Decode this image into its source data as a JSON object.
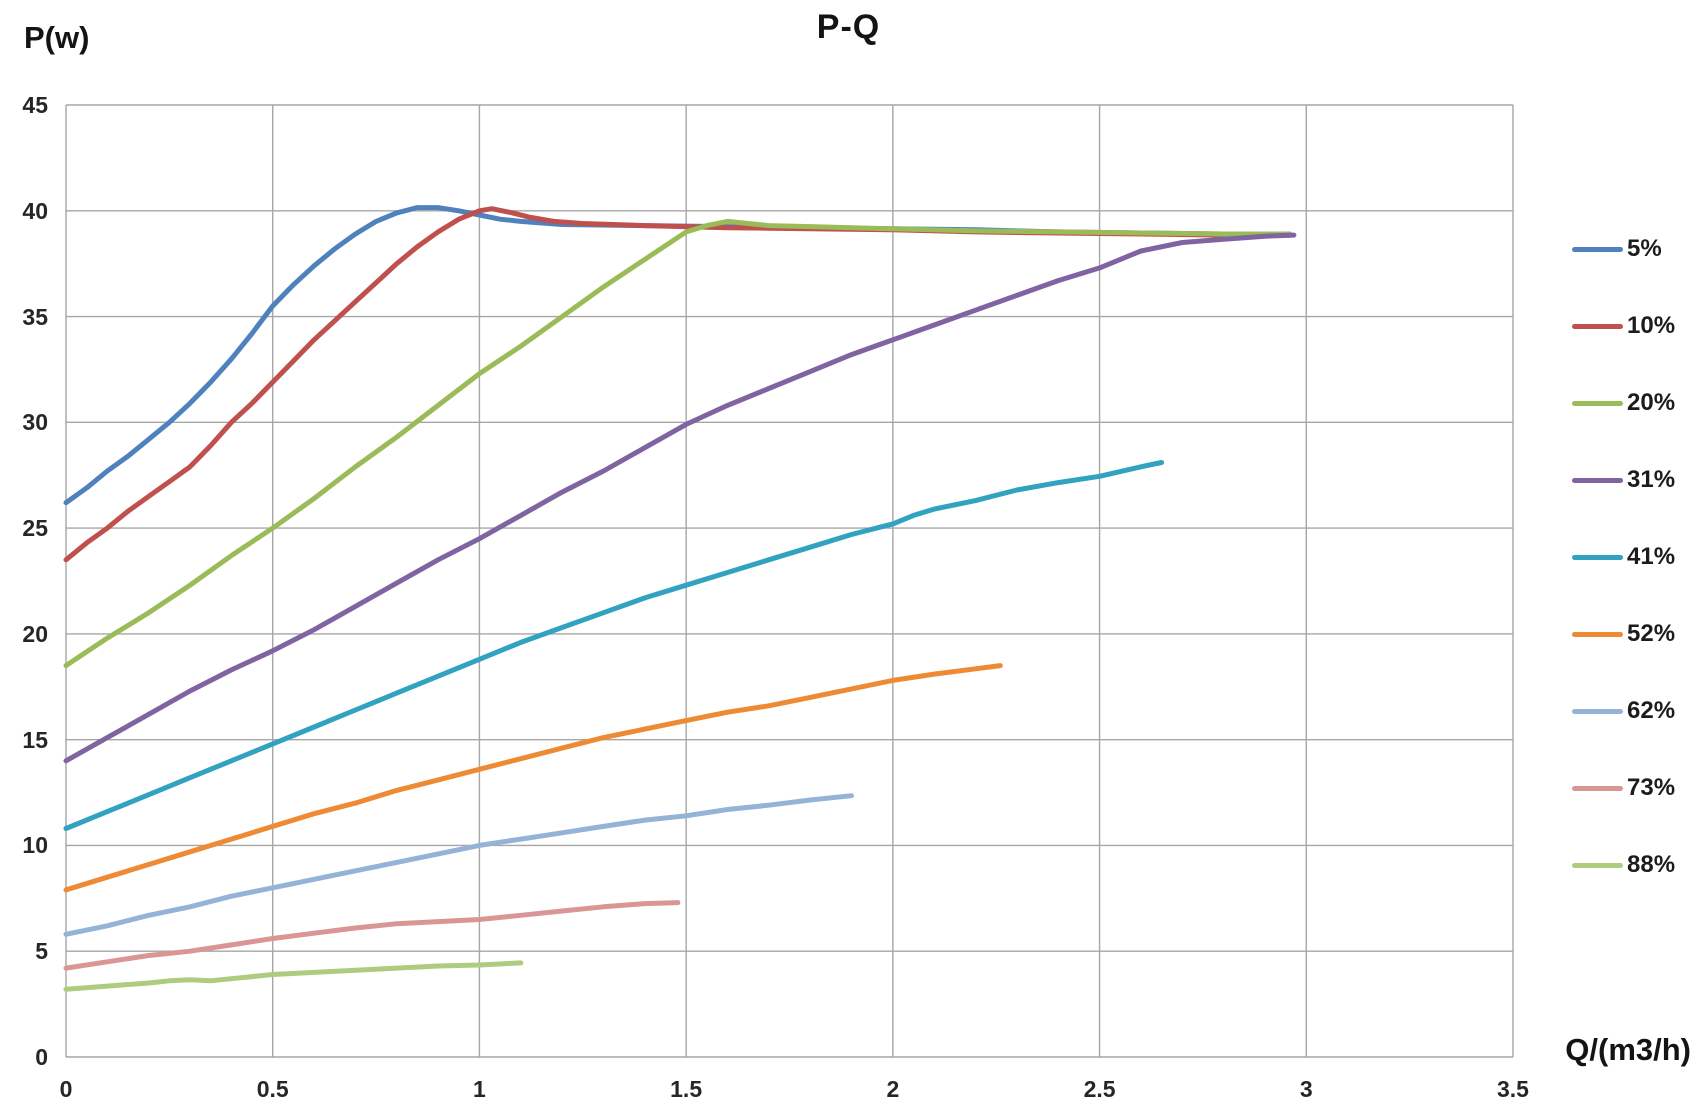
{
  "page": {
    "title": "P-Q",
    "y_axis_title": "P(w)",
    "x_axis_title": "Q/(m3/h)"
  },
  "style": {
    "grid_color": "#a6a6a6",
    "tick_text_color": "#262626",
    "title_text_color": "#141414"
  },
  "chart_data": {
    "type": "line",
    "title": "P-Q",
    "xlabel": "Q/(m3/h)",
    "ylabel": "P(w)",
    "xlim": [
      0,
      3.5
    ],
    "ylim": [
      0,
      45
    ],
    "x_tick_labels": [
      "0",
      "0.5",
      "1",
      "1.5",
      "2",
      "2.5",
      "3",
      "3.5"
    ],
    "y_tick_labels": [
      "0",
      "5",
      "10",
      "15",
      "20",
      "25",
      "30",
      "35",
      "40",
      "45"
    ],
    "grid": true,
    "legend_position": "right",
    "series": [
      {
        "name": "5%",
        "color": "#4F81BD",
        "points": [
          [
            0,
            26.2
          ],
          [
            0.05,
            26.9
          ],
          [
            0.1,
            27.7
          ],
          [
            0.15,
            28.4
          ],
          [
            0.2,
            29.2
          ],
          [
            0.25,
            30.0
          ],
          [
            0.3,
            30.9
          ],
          [
            0.35,
            31.9
          ],
          [
            0.4,
            33.0
          ],
          [
            0.45,
            34.2
          ],
          [
            0.5,
            35.5
          ],
          [
            0.55,
            36.5
          ],
          [
            0.6,
            37.4
          ],
          [
            0.65,
            38.2
          ],
          [
            0.7,
            38.9
          ],
          [
            0.75,
            39.5
          ],
          [
            0.8,
            39.9
          ],
          [
            0.85,
            40.15
          ],
          [
            0.9,
            40.15
          ],
          [
            0.95,
            40.0
          ],
          [
            1.0,
            39.8
          ],
          [
            1.05,
            39.6
          ],
          [
            1.1,
            39.5
          ],
          [
            1.2,
            39.35
          ],
          [
            1.4,
            39.3
          ],
          [
            1.6,
            39.25
          ],
          [
            1.8,
            39.2
          ],
          [
            2.0,
            39.15
          ],
          [
            2.2,
            39.1
          ],
          [
            2.4,
            39.0
          ],
          [
            2.6,
            38.95
          ],
          [
            2.8,
            38.9
          ],
          [
            2.96,
            38.9
          ]
        ]
      },
      {
        "name": "10%",
        "color": "#C0504D",
        "points": [
          [
            0,
            23.5
          ],
          [
            0.05,
            24.3
          ],
          [
            0.1,
            25.0
          ],
          [
            0.15,
            25.8
          ],
          [
            0.2,
            26.5
          ],
          [
            0.25,
            27.2
          ],
          [
            0.3,
            27.9
          ],
          [
            0.35,
            28.9
          ],
          [
            0.4,
            30.0
          ],
          [
            0.45,
            30.9
          ],
          [
            0.5,
            31.9
          ],
          [
            0.55,
            32.9
          ],
          [
            0.6,
            33.9
          ],
          [
            0.65,
            34.8
          ],
          [
            0.7,
            35.7
          ],
          [
            0.75,
            36.6
          ],
          [
            0.8,
            37.5
          ],
          [
            0.85,
            38.3
          ],
          [
            0.9,
            39.0
          ],
          [
            0.95,
            39.6
          ],
          [
            1.0,
            40.0
          ],
          [
            1.03,
            40.1
          ],
          [
            1.08,
            39.9
          ],
          [
            1.12,
            39.7
          ],
          [
            1.18,
            39.5
          ],
          [
            1.25,
            39.4
          ],
          [
            1.4,
            39.3
          ],
          [
            1.6,
            39.2
          ],
          [
            1.8,
            39.15
          ],
          [
            2.0,
            39.1
          ],
          [
            2.2,
            39.0
          ],
          [
            2.4,
            38.95
          ],
          [
            2.6,
            38.9
          ],
          [
            2.8,
            38.85
          ],
          [
            2.96,
            38.85
          ]
        ]
      },
      {
        "name": "20%",
        "color": "#9BBB59",
        "points": [
          [
            0,
            18.5
          ],
          [
            0.1,
            19.8
          ],
          [
            0.2,
            21.0
          ],
          [
            0.3,
            22.3
          ],
          [
            0.4,
            23.7
          ],
          [
            0.5,
            25.0
          ],
          [
            0.6,
            26.4
          ],
          [
            0.7,
            27.9
          ],
          [
            0.8,
            29.3
          ],
          [
            0.9,
            30.8
          ],
          [
            1.0,
            32.3
          ],
          [
            1.1,
            33.6
          ],
          [
            1.2,
            35.0
          ],
          [
            1.3,
            36.4
          ],
          [
            1.4,
            37.7
          ],
          [
            1.5,
            39.0
          ],
          [
            1.55,
            39.3
          ],
          [
            1.6,
            39.5
          ],
          [
            1.65,
            39.4
          ],
          [
            1.7,
            39.3
          ],
          [
            1.8,
            39.25
          ],
          [
            2.0,
            39.15
          ],
          [
            2.2,
            39.05
          ],
          [
            2.4,
            39.0
          ],
          [
            2.6,
            38.95
          ],
          [
            2.8,
            38.9
          ],
          [
            2.96,
            38.9
          ]
        ]
      },
      {
        "name": "31%",
        "color": "#8064A2",
        "points": [
          [
            0,
            14.0
          ],
          [
            0.1,
            15.1
          ],
          [
            0.2,
            16.2
          ],
          [
            0.3,
            17.3
          ],
          [
            0.4,
            18.3
          ],
          [
            0.5,
            19.2
          ],
          [
            0.6,
            20.2
          ],
          [
            0.7,
            21.3
          ],
          [
            0.8,
            22.4
          ],
          [
            0.9,
            23.5
          ],
          [
            1.0,
            24.5
          ],
          [
            1.1,
            25.6
          ],
          [
            1.2,
            26.7
          ],
          [
            1.3,
            27.7
          ],
          [
            1.4,
            28.8
          ],
          [
            1.5,
            29.9
          ],
          [
            1.6,
            30.8
          ],
          [
            1.7,
            31.6
          ],
          [
            1.8,
            32.4
          ],
          [
            1.9,
            33.2
          ],
          [
            2.0,
            33.9
          ],
          [
            2.1,
            34.6
          ],
          [
            2.2,
            35.3
          ],
          [
            2.3,
            36.0
          ],
          [
            2.4,
            36.7
          ],
          [
            2.5,
            37.3
          ],
          [
            2.6,
            38.1
          ],
          [
            2.7,
            38.5
          ],
          [
            2.8,
            38.65
          ],
          [
            2.9,
            38.8
          ],
          [
            2.97,
            38.85
          ]
        ]
      },
      {
        "name": "41%",
        "color": "#31A2BF",
        "points": [
          [
            0,
            10.8
          ],
          [
            0.1,
            11.6
          ],
          [
            0.2,
            12.4
          ],
          [
            0.3,
            13.2
          ],
          [
            0.4,
            14.0
          ],
          [
            0.5,
            14.8
          ],
          [
            0.6,
            15.6
          ],
          [
            0.7,
            16.4
          ],
          [
            0.8,
            17.2
          ],
          [
            0.9,
            18.0
          ],
          [
            1.0,
            18.8
          ],
          [
            1.1,
            19.6
          ],
          [
            1.2,
            20.3
          ],
          [
            1.3,
            21.0
          ],
          [
            1.4,
            21.7
          ],
          [
            1.5,
            22.3
          ],
          [
            1.6,
            22.9
          ],
          [
            1.7,
            23.5
          ],
          [
            1.8,
            24.1
          ],
          [
            1.9,
            24.7
          ],
          [
            2.0,
            25.2
          ],
          [
            2.05,
            25.6
          ],
          [
            2.1,
            25.9
          ],
          [
            2.2,
            26.3
          ],
          [
            2.3,
            26.8
          ],
          [
            2.4,
            27.15
          ],
          [
            2.5,
            27.45
          ],
          [
            2.6,
            27.9
          ],
          [
            2.65,
            28.1
          ]
        ]
      },
      {
        "name": "52%",
        "color": "#ED8A33",
        "points": [
          [
            0,
            7.9
          ],
          [
            0.1,
            8.5
          ],
          [
            0.2,
            9.1
          ],
          [
            0.3,
            9.7
          ],
          [
            0.4,
            10.3
          ],
          [
            0.5,
            10.9
          ],
          [
            0.6,
            11.5
          ],
          [
            0.7,
            12.0
          ],
          [
            0.8,
            12.6
          ],
          [
            0.9,
            13.1
          ],
          [
            1.0,
            13.6
          ],
          [
            1.1,
            14.1
          ],
          [
            1.2,
            14.6
          ],
          [
            1.3,
            15.1
          ],
          [
            1.4,
            15.5
          ],
          [
            1.5,
            15.9
          ],
          [
            1.6,
            16.3
          ],
          [
            1.7,
            16.6
          ],
          [
            1.8,
            17.0
          ],
          [
            1.9,
            17.4
          ],
          [
            2.0,
            17.8
          ],
          [
            2.1,
            18.1
          ],
          [
            2.2,
            18.35
          ],
          [
            2.26,
            18.5
          ]
        ]
      },
      {
        "name": "62%",
        "color": "#95B3D7",
        "points": [
          [
            0,
            5.8
          ],
          [
            0.1,
            6.2
          ],
          [
            0.2,
            6.7
          ],
          [
            0.3,
            7.1
          ],
          [
            0.4,
            7.6
          ],
          [
            0.5,
            8.0
          ],
          [
            0.6,
            8.4
          ],
          [
            0.7,
            8.8
          ],
          [
            0.8,
            9.2
          ],
          [
            0.9,
            9.6
          ],
          [
            1.0,
            10.0
          ],
          [
            1.1,
            10.3
          ],
          [
            1.2,
            10.6
          ],
          [
            1.3,
            10.9
          ],
          [
            1.4,
            11.2
          ],
          [
            1.5,
            11.4
          ],
          [
            1.6,
            11.7
          ],
          [
            1.7,
            11.9
          ],
          [
            1.8,
            12.15
          ],
          [
            1.9,
            12.35
          ]
        ]
      },
      {
        "name": "73%",
        "color": "#D99694",
        "points": [
          [
            0,
            4.2
          ],
          [
            0.1,
            4.5
          ],
          [
            0.2,
            4.8
          ],
          [
            0.3,
            5.0
          ],
          [
            0.4,
            5.3
          ],
          [
            0.5,
            5.6
          ],
          [
            0.6,
            5.85
          ],
          [
            0.7,
            6.1
          ],
          [
            0.8,
            6.3
          ],
          [
            0.9,
            6.4
          ],
          [
            1.0,
            6.5
          ],
          [
            1.1,
            6.7
          ],
          [
            1.2,
            6.9
          ],
          [
            1.3,
            7.1
          ],
          [
            1.4,
            7.25
          ],
          [
            1.48,
            7.3
          ]
        ]
      },
      {
        "name": "88%",
        "color": "#AFCB7F",
        "points": [
          [
            0,
            3.2
          ],
          [
            0.1,
            3.35
          ],
          [
            0.2,
            3.5
          ],
          [
            0.25,
            3.6
          ],
          [
            0.3,
            3.65
          ],
          [
            0.35,
            3.6
          ],
          [
            0.4,
            3.7
          ],
          [
            0.5,
            3.9
          ],
          [
            0.6,
            4.0
          ],
          [
            0.7,
            4.1
          ],
          [
            0.8,
            4.2
          ],
          [
            0.9,
            4.3
          ],
          [
            1.0,
            4.35
          ],
          [
            1.1,
            4.45
          ]
        ]
      }
    ]
  }
}
